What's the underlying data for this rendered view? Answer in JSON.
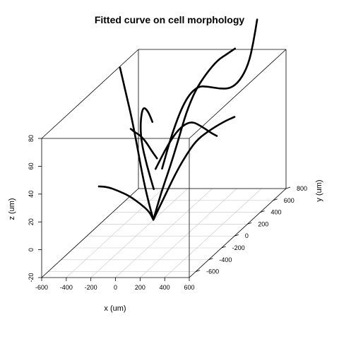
{
  "chart_data": {
    "type": "line",
    "title": "Fitted curve on cell morphology",
    "xlabel": "x (um)",
    "ylabel": "y (um)",
    "zlabel": "z (um)",
    "xlim": [
      -600,
      600
    ],
    "ylim": [
      -700,
      800
    ],
    "zlim": [
      -20,
      80
    ],
    "x_ticks": [
      "-600",
      "-400",
      "-200",
      "0",
      "200",
      "400",
      "600"
    ],
    "y_ticks": [
      "-600",
      "-400",
      "-200",
      "0",
      "200",
      "400",
      "600",
      "800"
    ],
    "z_ticks": [
      "-20",
      "0",
      "20",
      "40",
      "60",
      "80"
    ],
    "grid": true,
    "series": [
      {
        "points": [
          [
            -80,
            40,
            -10
          ],
          [
            -100,
            0,
            5
          ],
          [
            -120,
            -50,
            25
          ],
          [
            -140,
            -100,
            50
          ],
          [
            -160,
            -140,
            70
          ],
          [
            -180,
            -170,
            85
          ],
          [
            -200,
            -200,
            100
          ],
          [
            -220,
            -210,
            110
          ]
        ]
      },
      {
        "points": [
          [
            -80,
            40,
            -10
          ],
          [
            -10,
            80,
            5
          ],
          [
            60,
            120,
            20
          ],
          [
            110,
            180,
            30
          ],
          [
            160,
            240,
            38
          ],
          [
            220,
            300,
            42
          ],
          [
            300,
            400,
            45
          ],
          [
            360,
            460,
            46
          ]
        ]
      },
      {
        "points": [
          [
            -80,
            40,
            -10
          ],
          [
            -60,
            -60,
            0
          ],
          [
            -80,
            -160,
            10
          ],
          [
            -120,
            -260,
            20
          ],
          [
            -160,
            -360,
            28
          ],
          [
            -200,
            -440,
            34
          ],
          [
            -240,
            -500,
            37
          ]
        ]
      },
      {
        "points": [
          [
            -80,
            40,
            -10
          ],
          [
            -70,
            140,
            5
          ],
          [
            -40,
            220,
            20
          ],
          [
            0,
            280,
            38
          ],
          [
            40,
            320,
            55
          ],
          [
            80,
            380,
            68
          ],
          [
            140,
            440,
            78
          ],
          [
            200,
            500,
            85
          ],
          [
            260,
            540,
            88
          ],
          [
            300,
            580,
            90
          ]
        ]
      },
      {
        "points": [
          [
            -40,
            -30,
            15
          ],
          [
            -60,
            -100,
            35
          ],
          [
            -80,
            -150,
            55
          ],
          [
            -70,
            -180,
            70
          ],
          [
            -60,
            -160,
            80
          ],
          [
            -40,
            -120,
            75
          ],
          [
            -30,
            -70,
            65
          ]
        ]
      },
      {
        "points": [
          [
            -30,
            80,
            25
          ],
          [
            20,
            140,
            48
          ],
          [
            80,
            220,
            68
          ],
          [
            140,
            300,
            75
          ],
          [
            200,
            360,
            72
          ],
          [
            260,
            420,
            68
          ],
          [
            320,
            470,
            66
          ],
          [
            380,
            500,
            70
          ],
          [
            430,
            540,
            80
          ],
          [
            460,
            560,
            95
          ],
          [
            470,
            600,
            110
          ]
        ]
      },
      {
        "points": [
          [
            -20,
            -40,
            30
          ],
          [
            50,
            20,
            45
          ],
          [
            120,
            60,
            55
          ],
          [
            190,
            110,
            58
          ],
          [
            250,
            160,
            52
          ],
          [
            290,
            220,
            45
          ],
          [
            310,
            280,
            40
          ]
        ]
      },
      {
        "points": [
          [
            -40,
            20,
            35
          ],
          [
            -90,
            30,
            40
          ],
          [
            -140,
            40,
            46
          ],
          [
            -190,
            50,
            50
          ],
          [
            -240,
            60,
            52
          ],
          [
            -280,
            70,
            54
          ]
        ]
      }
    ]
  }
}
